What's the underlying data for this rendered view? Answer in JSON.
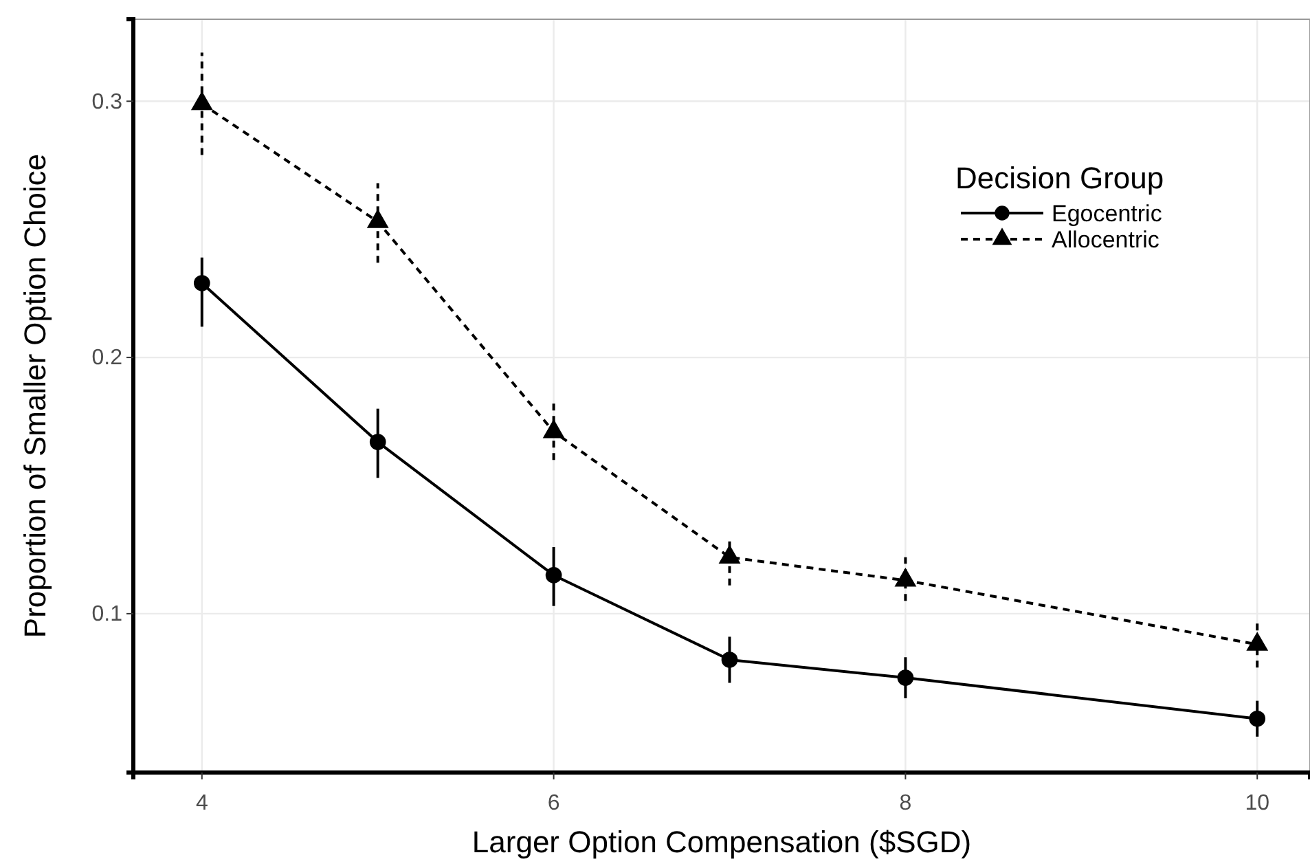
{
  "chart_data": {
    "type": "line",
    "xlabel": "Larger Option Compensation ($SGD)",
    "ylabel": "Proportion of Smaller Option Choice",
    "legend_title": "Decision Group",
    "x": [
      4,
      5,
      6,
      7,
      8,
      10
    ],
    "series": [
      {
        "name": "Egocentric",
        "color": "#000000",
        "marker": "circle",
        "line_style": "solid",
        "values": [
          0.229,
          0.167,
          0.115,
          0.082,
          0.075,
          0.059
        ],
        "errors": [
          [
            0.212,
            0.239
          ],
          [
            0.153,
            0.18
          ],
          [
            0.103,
            0.126
          ],
          [
            0.073,
            0.091
          ],
          [
            0.067,
            0.083
          ],
          [
            0.052,
            0.066
          ]
        ]
      },
      {
        "name": "Allocentric",
        "color": "#000000",
        "marker": "triangle",
        "line_style": "dashed",
        "values": [
          0.299,
          0.253,
          0.171,
          0.122,
          0.113,
          0.088
        ],
        "errors": [
          [
            0.279,
            0.319
          ],
          [
            0.237,
            0.268
          ],
          [
            0.16,
            0.183
          ],
          [
            0.111,
            0.13
          ],
          [
            0.105,
            0.122
          ],
          [
            0.079,
            0.097
          ]
        ]
      }
    ],
    "xlim": [
      3.61,
      10.3
    ],
    "ylim": [
      0.038,
      0.332
    ],
    "xticks": [
      4,
      6,
      8,
      10
    ],
    "yticks": [
      0.1,
      0.2,
      0.3
    ],
    "grid": true,
    "legend": "top right"
  }
}
